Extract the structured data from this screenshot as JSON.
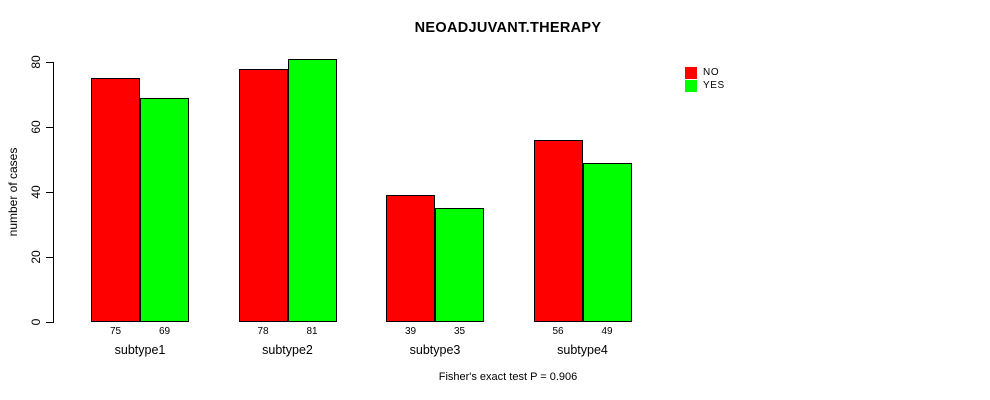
{
  "chart_data": {
    "type": "bar",
    "title": "NEOADJUVANT.THERAPY",
    "ylabel": "number of cases",
    "xlabel": "",
    "categories": [
      "subtype1",
      "subtype2",
      "subtype3",
      "subtype4"
    ],
    "series": [
      {
        "name": "NO",
        "color": "#ff0000",
        "values": [
          75,
          78,
          39,
          56
        ]
      },
      {
        "name": "YES",
        "color": "#00ff00",
        "values": [
          69,
          81,
          35,
          49
        ]
      }
    ],
    "ylim": [
      0,
      80
    ],
    "yticks": [
      0,
      20,
      40,
      60,
      80
    ],
    "grid": false,
    "legend_position": "top-right",
    "bar_value_labels_shown": true,
    "annotation": "Fisher's exact test P = 0.906",
    "bar_border_color": "#000000",
    "background_color": "#ffffff"
  }
}
